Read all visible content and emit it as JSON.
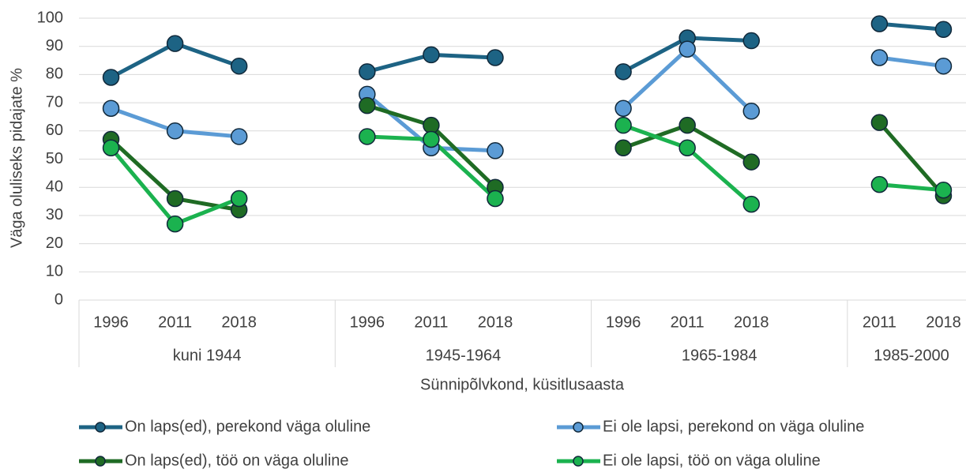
{
  "chart_data": {
    "type": "line",
    "y_label": "Väga oluliseks pidajate %",
    "x_label": "Sünnipõlvkond, küsitlusaasta",
    "categories": [
      "1996",
      "2011",
      "2018",
      null,
      "1996",
      "2011",
      "2018",
      null,
      "1996",
      "2011",
      "2018",
      null,
      "2011",
      "2018"
    ],
    "groups": [
      "kuni 1944",
      "1945-1964",
      "1965-1984",
      "1985-2000"
    ],
    "series": [
      {
        "name": "On laps(ed), perekond väga oluline",
        "color": "#1d6384",
        "values": [
          79,
          91,
          83,
          null,
          81,
          87,
          86,
          null,
          81,
          93,
          92,
          null,
          98,
          96
        ]
      },
      {
        "name": "Ei ole lapsi, perekond on väga oluline",
        "color": "#5b9bd5",
        "values": [
          68,
          60,
          58,
          null,
          73,
          54,
          53,
          null,
          68,
          89,
          67,
          null,
          86,
          83
        ]
      },
      {
        "name": "On laps(ed), töö on väga oluline",
        "color": "#1f6b24",
        "values": [
          57,
          36,
          32,
          null,
          69,
          62,
          40,
          null,
          54,
          62,
          49,
          null,
          63,
          37
        ]
      },
      {
        "name": "Ei ole lapsi, töö on väga oluline",
        "color": "#1bb24f",
        "values": [
          54,
          27,
          36,
          null,
          58,
          57,
          36,
          null,
          62,
          54,
          34,
          null,
          41,
          39
        ]
      }
    ],
    "ylim": [
      0,
      100
    ],
    "yticks": [
      0,
      10,
      20,
      30,
      40,
      50,
      60,
      70,
      80,
      90,
      100
    ],
    "grid": true,
    "legend": "bottom"
  }
}
